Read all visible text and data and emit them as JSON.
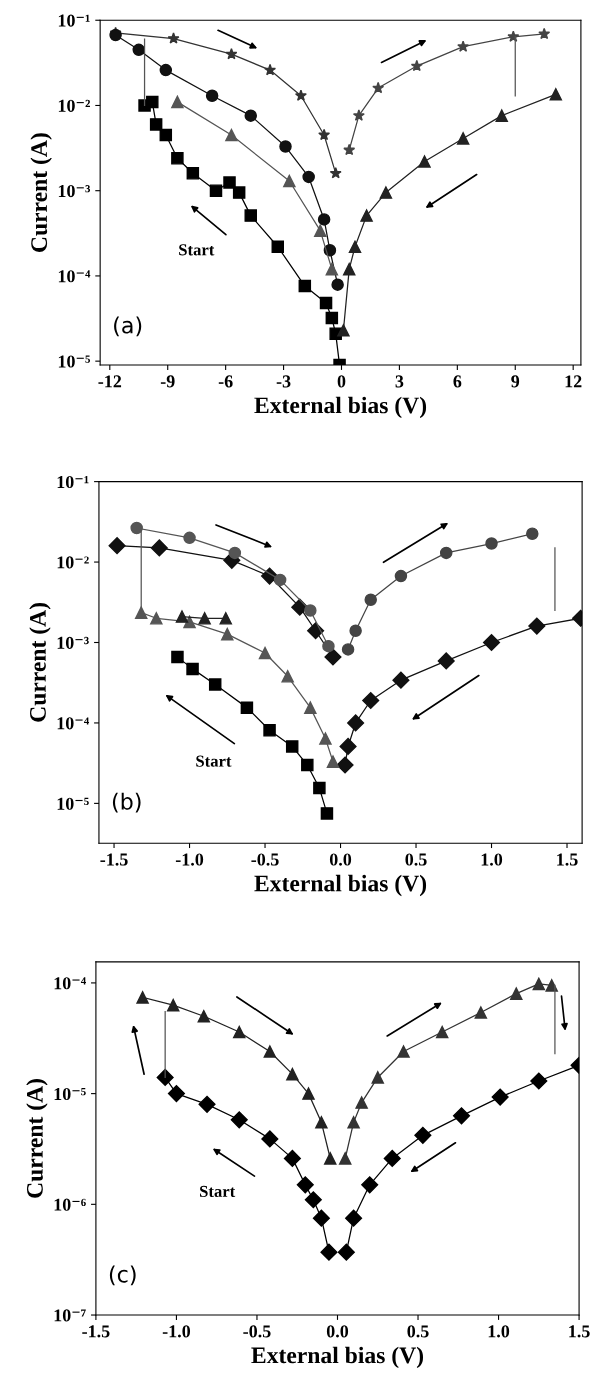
{
  "chart_data": [
    {
      "type": "line",
      "xlabel": "External bias (V)",
      "ylabel": "Current (A)",
      "log": "y",
      "xlim": [
        -12.5,
        12.4
      ],
      "xticks": [
        -12,
        -9,
        -6,
        -3,
        0,
        3,
        6,
        9,
        12
      ],
      "ylim": [
        9e-06,
        0.1
      ],
      "yticks": [
        {
          "value": 1e-05,
          "label": "10⁻⁵"
        },
        {
          "value": 0.0001,
          "label": "10⁻⁴"
        },
        {
          "value": 0.001,
          "label": "10⁻³"
        },
        {
          "value": 0.01,
          "label": "10⁻²"
        },
        {
          "value": 0.1,
          "label": "10⁻¹"
        }
      ],
      "annotations": [
        "(a)",
        "Start"
      ],
      "series": [
        {
          "color": "#000000",
          "marker": "square",
          "x": [
            -0.1,
            -0.3,
            -0.5,
            -0.8,
            -1.9,
            -3.3,
            -4.7,
            -5.3,
            -5.8,
            -6.5,
            -7.7,
            -8.5,
            -9.1,
            -9.6,
            -9.8,
            -10.2
          ],
          "values": [
            9e-06,
            2.1e-05,
            3.2e-05,
            4.8e-05,
            7.6e-05,
            0.00022,
            0.00051,
            0.00095,
            0.00125,
            0.001,
            0.0016,
            0.0024,
            0.0045,
            0.006,
            0.011,
            0.01
          ]
        },
        {
          "color": "#333333",
          "marker": "star",
          "x": [
            -11.7,
            -8.7,
            -5.7,
            -3.7,
            -2.1,
            -0.9,
            -0.3
          ],
          "values": [
            0.071,
            0.061,
            0.04,
            0.026,
            0.013,
            0.0045,
            0.0016
          ]
        },
        {
          "color": "#444444",
          "marker": "star",
          "x": [
            0.4,
            0.9,
            1.9,
            3.9,
            6.3,
            8.9,
            10.5
          ],
          "values": [
            0.003,
            0.0076,
            0.016,
            0.029,
            0.049,
            0.064,
            0.069
          ]
        },
        {
          "color": "#222222",
          "marker": "triangle",
          "x": [
            11.1,
            8.3,
            6.3,
            4.3,
            2.3,
            1.3,
            0.7,
            0.4,
            0.1
          ],
          "values": [
            0.0135,
            0.0076,
            0.0041,
            0.0022,
            0.00095,
            0.00051,
            0.00022,
            0.00012,
            2.3e-05
          ]
        },
        {
          "color": "#111111",
          "marker": "circle",
          "x": [
            -0.2,
            -0.6,
            -0.9,
            -1.7,
            -2.9,
            -4.7,
            -6.7,
            -9.1,
            -10.5,
            -11.7
          ],
          "values": [
            7.9e-05,
            0.0002,
            0.00046,
            0.00145,
            0.0033,
            0.0076,
            0.013,
            0.026,
            0.045,
            0.067
          ]
        },
        {
          "color": "#555555",
          "marker": "triangle",
          "x": [
            -0.5,
            -1.1,
            -2.7,
            -5.7,
            -8.5
          ],
          "values": [
            0.00012,
            0.00034,
            0.0013,
            0.0045,
            0.011
          ]
        },
        {
          "color": "#555555",
          "marker": "none",
          "x": [
            -10.2,
            -10.2
          ],
          "values": [
            0.01,
            0.06
          ]
        },
        {
          "color": "#555555",
          "marker": "none",
          "x": [
            9.0,
            9.0
          ],
          "values": [
            0.064,
            0.013
          ]
        }
      ]
    },
    {
      "type": "line",
      "xlabel": "External bias (V)",
      "ylabel": "Current (A)",
      "log": "y",
      "xlim": [
        -1.6,
        1.6
      ],
      "xticks": [
        {
          "value": -1.5,
          "label": "-1.5"
        },
        {
          "value": -1.0,
          "label": "-1.0"
        },
        {
          "value": -0.5,
          "label": "-0.5"
        },
        {
          "value": 0,
          "label": "0.0"
        },
        {
          "value": 0.5,
          "label": "0.5"
        },
        {
          "value": 1.0,
          "label": "1.0"
        },
        {
          "value": 1.5,
          "label": "1.5"
        }
      ],
      "ylim": [
        3.2e-06,
        0.1
      ],
      "yticks": [
        {
          "value": 1e-05,
          "label": "10⁻⁵"
        },
        {
          "value": 0.0001,
          "label": "10⁻⁴"
        },
        {
          "value": 0.001,
          "label": "10⁻³"
        },
        {
          "value": 0.01,
          "label": "10⁻²"
        },
        {
          "value": 0.1,
          "label": "10⁻¹"
        }
      ],
      "annotations": [
        "(b)",
        "Start"
      ],
      "series": [
        {
          "color": "#000000",
          "marker": "square",
          "x": [
            -0.09,
            -0.14,
            -0.22,
            -0.32,
            -0.47,
            -0.62,
            -0.83,
            -0.98,
            -1.08
          ],
          "values": [
            7.5e-06,
            1.55e-05,
            3e-05,
            5.1e-05,
            8.1e-05,
            0.000155,
            0.0003,
            0.00047,
            0.00066
          ]
        },
        {
          "color": "#111111",
          "marker": "diamond",
          "x": [
            -1.48,
            -1.2,
            -0.72,
            -0.47,
            -0.27,
            -0.165,
            -0.05
          ],
          "values": [
            0.016,
            0.015,
            0.0105,
            0.0067,
            0.00275,
            0.0014,
            0.00066
          ]
        },
        {
          "color": "#555555",
          "marker": "circle",
          "x": [
            -1.35,
            -1.0,
            -0.7,
            -0.4,
            -0.2,
            -0.08
          ],
          "values": [
            0.0265,
            0.02,
            0.013,
            0.006,
            0.0025,
            0.0009
          ]
        },
        {
          "color": "#444444",
          "marker": "circle",
          "x": [
            0.05,
            0.1,
            0.2,
            0.4,
            0.7,
            1.0,
            1.27
          ],
          "values": [
            0.00082,
            0.0014,
            0.0034,
            0.0067,
            0.013,
            0.017,
            0.0225
          ]
        },
        {
          "color": "#111111",
          "marker": "diamond",
          "x": [
            1.59,
            1.3,
            1.0,
            0.7,
            0.4,
            0.2,
            0.1,
            0.05,
            0.03
          ],
          "values": [
            0.002,
            0.0016,
            0.001,
            0.00059,
            0.00034,
            0.00019,
            0.0001,
            5.1e-05,
            3e-05
          ]
        },
        {
          "color": "#555555",
          "marker": "triangle",
          "x": [
            -0.05,
            -0.1,
            -0.2,
            -0.35,
            -0.5,
            -0.75,
            -1.0,
            -1.22,
            -1.32
          ],
          "values": [
            3.3e-05,
            6.4e-05,
            0.000155,
            0.00038,
            0.00074,
            0.00127,
            0.0018,
            0.002,
            0.00235
          ]
        },
        {
          "color": "#222222",
          "marker": "triangle",
          "x": [
            -1.05,
            -0.9,
            -0.76
          ],
          "values": [
            0.0021,
            0.002,
            0.002
          ]
        },
        {
          "color": "#555555",
          "marker": "none",
          "x": [
            -1.32,
            -1.32
          ],
          "values": [
            0.00235,
            0.0265
          ]
        },
        {
          "color": "#555555",
          "marker": "none",
          "x": [
            1.42,
            1.42
          ],
          "values": [
            0.015,
            0.0025
          ]
        }
      ]
    },
    {
      "type": "line",
      "xlabel": "External bias (V)",
      "ylabel": "Current (A)",
      "log": "y",
      "xlim": [
        -1.5,
        1.5
      ],
      "xticks": [
        {
          "value": -1.5,
          "label": "-1.5"
        },
        {
          "value": -1.0,
          "label": "-1.0"
        },
        {
          "value": -0.5,
          "label": "-0.5"
        },
        {
          "value": 0,
          "label": "0.0"
        },
        {
          "value": 0.5,
          "label": "0.5"
        },
        {
          "value": 1.0,
          "label": "1.0"
        },
        {
          "value": 1.5,
          "label": "1.5"
        }
      ],
      "ylim": [
        1e-07,
        0.000155
      ],
      "yticks": [
        {
          "value": 1e-07,
          "label": "10⁻⁷"
        },
        {
          "value": 1e-06,
          "label": "10⁻⁶"
        },
        {
          "value": 1e-05,
          "label": "10⁻⁵"
        },
        {
          "value": 0.0001,
          "label": "10⁻⁴"
        }
      ],
      "annotations": [
        "(c)",
        "Start"
      ],
      "series": [
        {
          "color": "#222222",
          "marker": "triangle",
          "x": [
            -1.21,
            -1.02,
            -0.83,
            -0.61,
            -0.42,
            -0.28,
            -0.18,
            -0.1,
            -0.045
          ],
          "values": [
            7.4e-05,
            6.3e-05,
            5e-05,
            3.6e-05,
            2.4e-05,
            1.5e-05,
            1e-05,
            5.5e-06,
            2.6e-06
          ]
        },
        {
          "color": "#333333",
          "marker": "triangle",
          "x": [
            0.048,
            0.1,
            0.15,
            0.25,
            0.41,
            0.65,
            0.89,
            1.11,
            1.25,
            1.33
          ],
          "values": [
            2.6e-06,
            5.5e-06,
            8.3e-06,
            1.4e-05,
            2.4e-05,
            3.6e-05,
            5.4e-05,
            8e-05,
            9.8e-05,
            9.5e-05
          ]
        },
        {
          "color": "#000000",
          "marker": "diamond",
          "x": [
            1.5,
            1.25,
            1.01,
            0.77,
            0.53,
            0.34,
            0.2,
            0.1,
            0.055
          ],
          "values": [
            1.8e-05,
            1.3e-05,
            9.3e-06,
            6.3e-06,
            4.2e-06,
            2.6e-06,
            1.5e-06,
            7.5e-07,
            3.7e-07
          ]
        },
        {
          "color": "#000000",
          "marker": "diamond",
          "x": [
            -0.053,
            -0.1,
            -0.15,
            -0.2,
            -0.28,
            -0.42,
            -0.61,
            -0.81,
            -1.0,
            -1.07
          ],
          "values": [
            3.7e-07,
            7.5e-07,
            1.1e-06,
            1.5e-06,
            2.6e-06,
            3.9e-06,
            5.8e-06,
            8e-06,
            1e-05,
            1.4e-05
          ]
        },
        {
          "color": "#555555",
          "marker": "none",
          "x": [
            -1.07,
            -1.07
          ],
          "values": [
            1.4e-05,
            5.5e-05
          ]
        },
        {
          "color": "#555555",
          "marker": "none",
          "x": [
            1.35,
            1.35
          ],
          "values": [
            9.5e-05,
            2.3e-05
          ]
        }
      ]
    }
  ]
}
